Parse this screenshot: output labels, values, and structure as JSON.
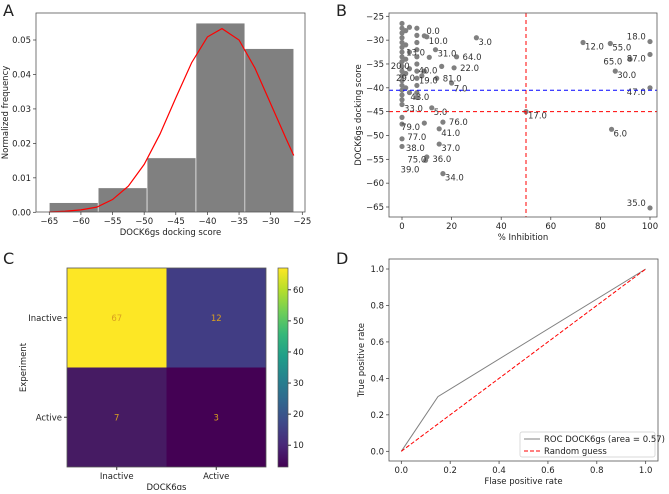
{
  "panels": [
    "A",
    "B",
    "C",
    "D"
  ],
  "chart_data": [
    {
      "panel": "A",
      "type": "bar",
      "subtype": "histogram with density curve",
      "xlabel": "DOCK6gs docking score",
      "ylabel": "Normalized frequency",
      "xlim": [
        -66.5,
        -24.5
      ],
      "ylim": [
        0,
        0.0575
      ],
      "xticks": [
        -65,
        -60,
        -55,
        -50,
        -45,
        -40,
        -35,
        -30,
        -25
      ],
      "yticks": [
        0.0,
        0.01,
        0.02,
        0.03,
        0.04,
        0.05
      ],
      "ytick_labels": [
        "0.00",
        "0.01",
        "0.02",
        "0.03",
        "0.04",
        "0.05"
      ],
      "bin_edges": [
        -65.0,
        -57.27,
        -49.54,
        -41.81,
        -34.08,
        -26.35
      ],
      "values": [
        0.0028,
        0.0071,
        0.0158,
        0.0549,
        0.0475
      ],
      "bar_color": "#808080",
      "curve": {
        "color": "#ff0000",
        "x": [
          -65,
          -62.5,
          -60,
          -57.5,
          -55,
          -52.5,
          -50,
          -47.5,
          -45,
          -42.5,
          -40,
          -37.7,
          -35,
          -32.5,
          -30,
          -27.5,
          -26.35
        ],
        "y": [
          0.0001,
          0.0003,
          0.0007,
          0.0015,
          0.0037,
          0.0076,
          0.0139,
          0.0227,
          0.0332,
          0.0434,
          0.0509,
          0.0533,
          0.05,
          0.0419,
          0.0315,
          0.0211,
          0.0165
        ]
      },
      "grid": false
    },
    {
      "panel": "B",
      "type": "scatter",
      "xlabel": "% Inhibition",
      "ylabel": "DOCK6gs docking score",
      "xlim": [
        -5,
        105
      ],
      "ylim": [
        -67.5,
        -24
      ],
      "xticks": [
        0,
        20,
        40,
        60,
        80,
        100
      ],
      "yticks": [
        -25,
        -30,
        -35,
        -40,
        -45,
        -50,
        -55,
        -60,
        -65
      ],
      "point_color": "#808080",
      "vline": {
        "x": 50,
        "color": "#ff0000",
        "style": "dashed"
      },
      "hlines": [
        {
          "y": -45,
          "color": "#ff0000",
          "style": "dashed"
        },
        {
          "y": -40.5,
          "color": "#0000ff",
          "style": "dashed"
        }
      ],
      "points": [
        {
          "x": 30,
          "y": -29.5,
          "label": "3.0"
        },
        {
          "x": 73,
          "y": -30.5,
          "label": "12.0"
        },
        {
          "x": 84,
          "y": -30.7,
          "label": "55.0"
        },
        {
          "x": 100,
          "y": -30.3,
          "label": "18.0"
        },
        {
          "x": 100,
          "y": -33,
          "label": "87.0"
        },
        {
          "x": 92,
          "y": -34,
          "label": "65.0"
        },
        {
          "x": 86,
          "y": -36.5,
          "label": "30.0"
        },
        {
          "x": 100,
          "y": -40,
          "label": "47.0"
        },
        {
          "x": 50,
          "y": -45,
          "label": "17.0"
        },
        {
          "x": 84.5,
          "y": -48.7,
          "label": "6.0"
        },
        {
          "x": 100,
          "y": -65.2,
          "label": "35.0"
        },
        {
          "x": 12,
          "y": -44.2,
          "label": "5.0"
        },
        {
          "x": 0,
          "y": -43.5,
          "label": "33.0"
        },
        {
          "x": 16.5,
          "y": -58,
          "label": "34.0"
        },
        {
          "x": 15,
          "y": -51.8,
          "label": "37.0"
        },
        {
          "x": 15,
          "y": -48.6,
          "label": "41.0"
        },
        {
          "x": 16.5,
          "y": -47.2,
          "label": "76.0"
        },
        {
          "x": 9,
          "y": -47.4,
          "label": "79.0"
        },
        {
          "x": 0,
          "y": -47.6,
          "label": "77.0"
        },
        {
          "x": 0,
          "y": -46.2,
          "label": "43.0"
        },
        {
          "x": 0,
          "y": -50.7,
          "label": "38.0"
        },
        {
          "x": 0,
          "y": -52.3,
          "label": "75.0"
        },
        {
          "x": 10,
          "y": -54.5,
          "label": "36.0"
        },
        {
          "x": 9.5,
          "y": -55.2,
          "label": "39.0"
        },
        {
          "x": 6,
          "y": -39.5,
          "label": "19.0"
        },
        {
          "x": 14,
          "y": -38,
          "label": "81.0"
        },
        {
          "x": 20,
          "y": -39,
          "label": "7.0"
        },
        {
          "x": 13.5,
          "y": -32,
          "label": "31.0"
        },
        {
          "x": 22,
          "y": -33.5,
          "label": "64.0"
        },
        {
          "x": 21,
          "y": -35.8,
          "label": "22.0"
        },
        {
          "x": 16,
          "y": -35.5,
          "label": "40.0"
        },
        {
          "x": 11,
          "y": -33.6,
          "label": "13.0"
        },
        {
          "x": 9,
          "y": -36.5,
          "label": "29.0"
        },
        {
          "x": 8,
          "y": -37.5,
          "label": "20.0"
        },
        {
          "x": 10,
          "y": -29.3,
          "label": "10.0"
        },
        {
          "x": 9,
          "y": -29.1,
          "label": "0.0"
        },
        {
          "x": 0,
          "y": -26.5,
          "label": ""
        },
        {
          "x": 0,
          "y": -27.5,
          "label": ""
        },
        {
          "x": 0,
          "y": -28.5,
          "label": ""
        },
        {
          "x": 0,
          "y": -29.5,
          "label": ""
        },
        {
          "x": 0,
          "y": -30.5,
          "label": ""
        },
        {
          "x": 0,
          "y": -31.5,
          "label": ""
        },
        {
          "x": 0,
          "y": -32.5,
          "label": ""
        },
        {
          "x": 0,
          "y": -33.5,
          "label": ""
        },
        {
          "x": 0,
          "y": -34.5,
          "label": ""
        },
        {
          "x": 0,
          "y": -35.5,
          "label": ""
        },
        {
          "x": 0,
          "y": -36.5,
          "label": ""
        },
        {
          "x": 0,
          "y": -37.5,
          "label": ""
        },
        {
          "x": 0,
          "y": -38.5,
          "label": ""
        },
        {
          "x": 0,
          "y": -39.5,
          "label": ""
        },
        {
          "x": 0,
          "y": -40.5,
          "label": ""
        },
        {
          "x": 0,
          "y": -41.5,
          "label": ""
        },
        {
          "x": 0,
          "y": -42.5,
          "label": ""
        },
        {
          "x": 1.5,
          "y": -28,
          "label": ""
        },
        {
          "x": 1.5,
          "y": -31,
          "label": ""
        },
        {
          "x": 1.5,
          "y": -34,
          "label": ""
        },
        {
          "x": 1.5,
          "y": -37,
          "label": ""
        },
        {
          "x": 1.5,
          "y": -40,
          "label": ""
        },
        {
          "x": 3,
          "y": -27.3,
          "label": ""
        },
        {
          "x": 3,
          "y": -32.5,
          "label": ""
        },
        {
          "x": 3,
          "y": -36,
          "label": ""
        },
        {
          "x": 3,
          "y": -41,
          "label": ""
        },
        {
          "x": 6,
          "y": -27.5,
          "label": ""
        },
        {
          "x": 6,
          "y": -29,
          "label": ""
        },
        {
          "x": 6,
          "y": -30.5,
          "label": ""
        },
        {
          "x": 6,
          "y": -32,
          "label": ""
        },
        {
          "x": 6,
          "y": -33.5,
          "label": ""
        },
        {
          "x": 6,
          "y": -35,
          "label": ""
        },
        {
          "x": 6,
          "y": -36.5,
          "label": ""
        },
        {
          "x": 6,
          "y": -38,
          "label": ""
        },
        {
          "x": 6,
          "y": -41,
          "label": ""
        },
        {
          "x": 6,
          "y": -42,
          "label": ""
        }
      ],
      "grid": false
    },
    {
      "panel": "C",
      "type": "heatmap",
      "subtype": "confusion matrix",
      "xlabel": "DOCK6gs",
      "ylabel": "Experiment",
      "x_categories": [
        "Inactive",
        "Active"
      ],
      "y_categories": [
        "Inactive",
        "Active"
      ],
      "values": [
        [
          67,
          12
        ],
        [
          7,
          3
        ]
      ],
      "colormap": "viridis",
      "cell_colors": [
        [
          "#fde725",
          "#413d84"
        ],
        [
          "#461b63",
          "#440154"
        ]
      ],
      "annotation_color": "#d9a020",
      "colorbar": {
        "range": [
          3,
          67
        ],
        "ticks": [
          10,
          20,
          30,
          40,
          50,
          60
        ]
      }
    },
    {
      "panel": "D",
      "type": "line",
      "xlabel": "Flase positive rate",
      "ylabel": "True positive rate",
      "xlim": [
        -0.05,
        1.05
      ],
      "ylim": [
        -0.05,
        1.05
      ],
      "xticks": [
        0.0,
        0.2,
        0.4,
        0.6,
        0.8,
        1.0
      ],
      "yticks": [
        0.0,
        0.2,
        0.4,
        0.6,
        0.8,
        1.0
      ],
      "tick_labels": [
        "0.0",
        "0.2",
        "0.4",
        "0.6",
        "0.8",
        "1.0"
      ],
      "series": [
        {
          "name": "ROC DOCK6gs (area = 0.57)",
          "x": [
            0,
            0.15,
            1
          ],
          "y": [
            0,
            0.3,
            1
          ],
          "color": "#808080",
          "style": "solid"
        },
        {
          "name": "Random guess",
          "x": [
            0,
            1
          ],
          "y": [
            0,
            1
          ],
          "color": "#ff0000",
          "style": "dashed"
        }
      ],
      "legend": "lower-right",
      "grid": false
    }
  ]
}
